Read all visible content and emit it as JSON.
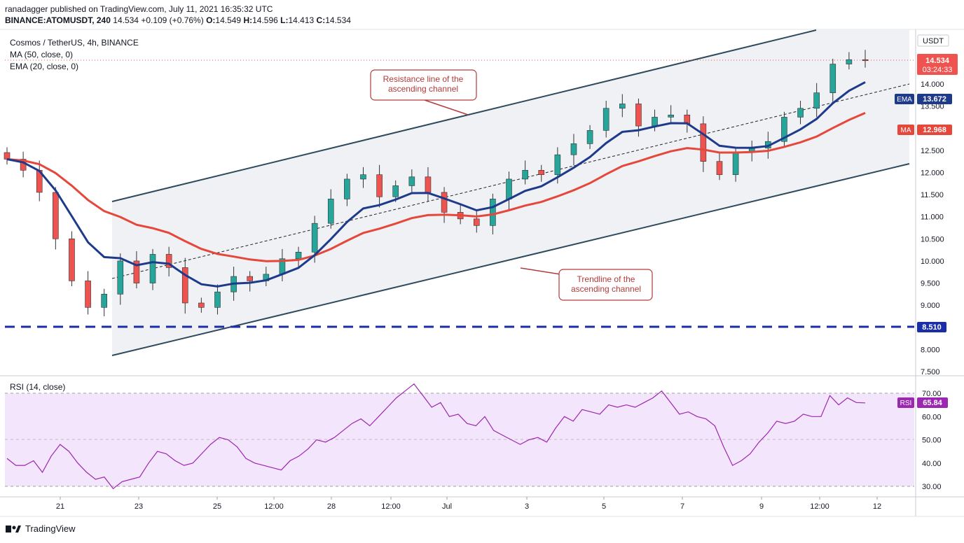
{
  "header": {
    "publisher_line": "ranadagger published on TradingView.com, July 11, 2021 16:35:32 UTC",
    "symbol": "BINANCE:ATOMUSDT, 240",
    "last": "14.534",
    "change": "+0.109 (+0.76%)",
    "o_label": "O:",
    "o": "14.549",
    "h_label": "H:",
    "h": "14.596",
    "l_label": "L:",
    "l": "14.413",
    "c_label": "C:",
    "c": "14.534"
  },
  "legend": {
    "title": "Cosmos / TetherUS, 4h, BINANCE",
    "ma": "MA (50, close, 0)",
    "ema": "EMA (20, close, 0)",
    "rsi": "RSI (14, close)"
  },
  "annotations": {
    "resistance_line1": "Resistance line of the",
    "resistance_line2": "ascending channel",
    "trend_line1": "Trendline of the",
    "trend_line2": "ascending channel"
  },
  "price_axis": {
    "currency": "USDT",
    "ticks": [
      "14.000",
      "13.500",
      "12.500",
      "12.000",
      "11.500",
      "11.000",
      "10.500",
      "10.000",
      "9.500",
      "9.000",
      "8.000",
      "7.500"
    ],
    "last_price": "14.534",
    "countdown": "03:24:33",
    "ema_tag": "EMA",
    "ema_value": "13.672",
    "ma_tag": "MA",
    "ma_value": "12.968",
    "support_value": "8.510"
  },
  "rsi_axis": {
    "ticks": [
      "70.00",
      "60.00",
      "50.00",
      "40.00",
      "30.00"
    ],
    "tag": "RSI",
    "value": "65.84"
  },
  "time_axis": {
    "labels": [
      "21",
      "23",
      "25",
      "12:00",
      "28",
      "12:00",
      "Jul",
      "3",
      "5",
      "7",
      "9",
      "12:00",
      "12"
    ]
  },
  "footer": {
    "brand": "TradingView"
  },
  "colors": {
    "up": "#26a69a",
    "down": "#ef5350",
    "ema": "#1e3a8a",
    "ma": "#e5473b",
    "support": "#1a2ea8",
    "channel": "#2e4a5c",
    "rsi": "#9c27b0",
    "annotation": "#b33a3a"
  },
  "chart_data": [
    {
      "type": "candlestick",
      "title": "Cosmos / TetherUS, 4h, BINANCE",
      "ylim": [
        7.45,
        14.75
      ],
      "x": [
        "Jun 20",
        "Jun 21",
        "Jun 22",
        "Jun 23",
        "Jun 24",
        "Jun 25",
        "Jun 26",
        "Jun 27",
        "Jun 28",
        "Jun 29",
        "Jun 30",
        "Jul 1",
        "Jul 2",
        "Jul 3",
        "Jul 4",
        "Jul 5",
        "Jul 6",
        "Jul 7",
        "Jul 8",
        "Jul 9",
        "Jul 10",
        "Jul 11"
      ],
      "candles_close": [
        12.3,
        12.05,
        11.55,
        10.5,
        9.55,
        8.95,
        9.25,
        10.0,
        9.5,
        10.15,
        9.85,
        9.05,
        8.95,
        9.3,
        9.65,
        9.55,
        9.7,
        10.05,
        10.2,
        10.85,
        11.4,
        11.85,
        11.95,
        11.45,
        11.7,
        11.9,
        11.55,
        11.1,
        10.95,
        10.8,
        11.4,
        11.85,
        12.05,
        11.95,
        12.4,
        12.65,
        12.95,
        13.45,
        13.55,
        13.05,
        13.25,
        13.3,
        13.1,
        12.25,
        11.95,
        12.45,
        12.55,
        12.7,
        13.25,
        13.45,
        13.8,
        14.45,
        14.55,
        14.53
      ],
      "support_level": 8.51,
      "series": [
        {
          "name": "EMA (20, close, 0)",
          "last": 13.672
        },
        {
          "name": "MA (50, close, 0)",
          "last": 12.968
        }
      ],
      "channel": {
        "resistance": [
          [
            "Jun 22",
            11.35
          ],
          [
            "Jul 11",
            14.65
          ]
        ],
        "support": [
          [
            "Jun 22",
            7.85
          ],
          [
            "Jul 11",
            11.95
          ]
        ]
      },
      "annotations": [
        "Resistance line of the ascending channel",
        "Trendline of the ascending channel"
      ]
    },
    {
      "type": "line",
      "title": "RSI (14, close)",
      "ylim": [
        25,
        77
      ],
      "levels": [
        70,
        30
      ],
      "values": [
        42,
        39,
        39,
        41,
        36,
        43,
        48,
        45,
        40,
        36,
        33,
        34,
        29,
        32,
        33,
        34,
        40,
        45,
        44,
        41,
        39,
        40,
        44,
        48,
        51,
        50,
        47,
        42,
        40,
        39,
        38,
        37,
        41,
        43,
        46,
        50,
        49,
        51,
        54,
        57,
        59,
        56,
        60,
        64,
        68,
        71,
        74,
        69,
        64,
        66,
        60,
        61,
        57,
        56,
        60,
        54,
        52,
        50,
        48,
        50,
        51,
        49,
        55,
        60,
        58,
        63,
        62,
        61,
        65,
        64,
        65,
        64,
        66,
        68,
        71,
        66,
        61,
        62,
        60,
        59,
        56,
        47,
        39,
        41,
        44,
        49,
        53,
        58,
        57,
        58,
        61,
        60,
        60,
        69,
        65,
        68,
        66,
        65.84
      ],
      "last": 65.84
    }
  ]
}
